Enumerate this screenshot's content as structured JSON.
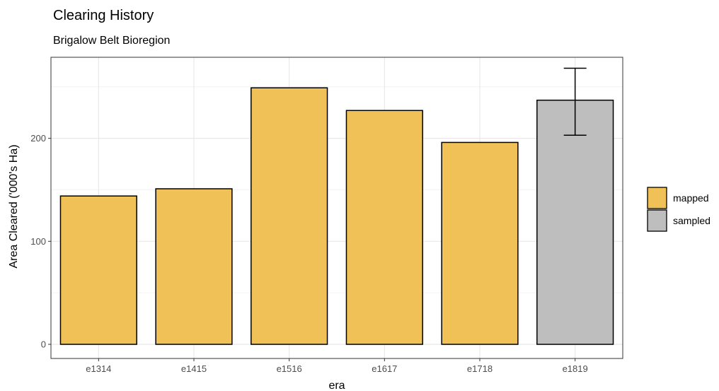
{
  "chart_data": {
    "type": "bar",
    "title": "Clearing History",
    "subtitle": "Brigalow Belt Bioregion",
    "xlabel": "era",
    "ylabel": "Area Cleared ('000's Ha)",
    "categories": [
      "e1314",
      "e1415",
      "e1516",
      "e1617",
      "e1718",
      "e1819"
    ],
    "values": [
      144,
      151,
      249,
      227,
      196,
      237
    ],
    "fill_group": [
      "mapped",
      "mapped",
      "mapped",
      "mapped",
      "mapped",
      "sampled"
    ],
    "error_bars": [
      {
        "category": "e1819",
        "low": 203,
        "high": 268
      }
    ],
    "ylim": [
      -8,
      275
    ],
    "yticks": [
      0,
      100,
      200
    ],
    "grid": true,
    "legend": {
      "placement": "right",
      "entries": [
        {
          "label": "mapped",
          "color": "#F0C157"
        },
        {
          "label": "sampled",
          "color": "#BEBEBE"
        }
      ]
    }
  },
  "colors": {
    "mapped": "#F0C157",
    "sampled": "#BEBEBE",
    "bar_outline": "#000000",
    "grid_major": "#E8E8E8",
    "grid_minor": "#F3F3F3",
    "panel_border": "#333333"
  }
}
